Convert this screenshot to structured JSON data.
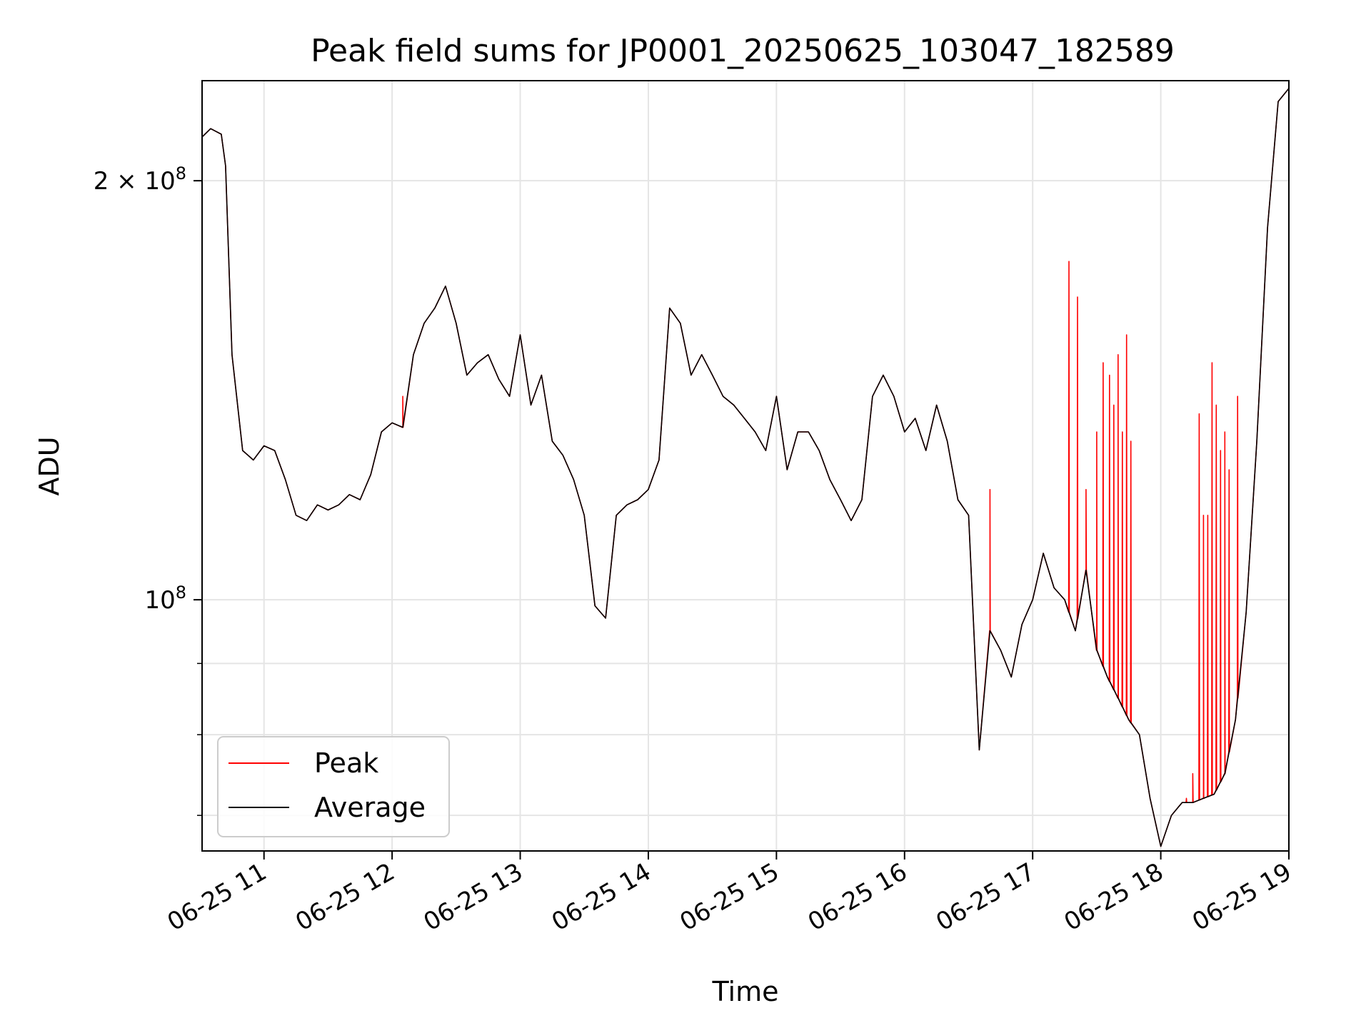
{
  "chart_data": {
    "type": "line",
    "title": "Peak field sums for JP0001_20250625_103047_182589",
    "xlabel": "Time",
    "ylabel": "ADU",
    "yscale": "log",
    "grid": true,
    "legend_position": "lower-left",
    "xlim": [
      "06-25 10:31",
      "06-25 19:00"
    ],
    "ylim": [
      66000000,
      236000000
    ],
    "xticks": [
      "06-25 11",
      "06-25 12",
      "06-25 13",
      "06-25 14",
      "06-25 15",
      "06-25 16",
      "06-25 17",
      "06-25 18",
      "06-25 19"
    ],
    "yticks": [
      {
        "value": 100000000,
        "base": "10",
        "exp": "8",
        "mantissa": ""
      },
      {
        "value": 200000000,
        "base": "10",
        "exp": "8",
        "mantissa": "2"
      }
    ],
    "x": [
      "10:31",
      "10:35",
      "10:40",
      "10:42",
      "10:45",
      "10:50",
      "10:55",
      "11:00",
      "11:05",
      "11:10",
      "11:15",
      "11:20",
      "11:25",
      "11:30",
      "11:35",
      "11:40",
      "11:45",
      "11:50",
      "11:55",
      "12:00",
      "12:05",
      "12:10",
      "12:15",
      "12:20",
      "12:25",
      "12:30",
      "12:35",
      "12:40",
      "12:45",
      "12:50",
      "12:55",
      "13:00",
      "13:05",
      "13:10",
      "13:15",
      "13:20",
      "13:25",
      "13:30",
      "13:35",
      "13:40",
      "13:45",
      "13:50",
      "13:55",
      "14:00",
      "14:05",
      "14:10",
      "14:15",
      "14:20",
      "14:25",
      "14:30",
      "14:35",
      "14:40",
      "14:45",
      "14:50",
      "14:55",
      "15:00",
      "15:05",
      "15:10",
      "15:15",
      "15:20",
      "15:25",
      "15:30",
      "15:35",
      "15:40",
      "15:45",
      "15:50",
      "15:55",
      "16:00",
      "16:05",
      "16:10",
      "16:15",
      "16:20",
      "16:25",
      "16:30",
      "16:35",
      "16:40",
      "16:45",
      "16:50",
      "16:55",
      "17:00",
      "17:05",
      "17:10",
      "17:15",
      "17:20",
      "17:25",
      "17:30",
      "17:35",
      "17:40",
      "17:45",
      "17:50",
      "17:55",
      "18:00",
      "18:05",
      "18:10",
      "18:15",
      "18:20",
      "18:25",
      "18:30",
      "18:35",
      "18:40",
      "18:45",
      "18:50",
      "18:55",
      "19:00"
    ],
    "series": [
      {
        "name": "Peak",
        "color": "#ff0000",
        "values": [
          215000000,
          218000000,
          216000000,
          205000000,
          150000000,
          128000000,
          126000000,
          129000000,
          128000000,
          122000000,
          115000000,
          114000000,
          117000000,
          116000000,
          117000000,
          119000000,
          118000000,
          123000000,
          132000000,
          134000000,
          133000000,
          150000000,
          158000000,
          162000000,
          168000000,
          158000000,
          145000000,
          148000000,
          150000000,
          144000000,
          140000000,
          155000000,
          138000000,
          145000000,
          130000000,
          127000000,
          122000000,
          115000000,
          99000000,
          97000000,
          115000000,
          117000000,
          118000000,
          120000000,
          126000000,
          162000000,
          158000000,
          145000000,
          150000000,
          145000000,
          140000000,
          138000000,
          135000000,
          132000000,
          128000000,
          140000000,
          124000000,
          132000000,
          132000000,
          128000000,
          122000000,
          118000000,
          114000000,
          118000000,
          140000000,
          145000000,
          140000000,
          132000000,
          135000000,
          128000000,
          138000000,
          130000000,
          118000000,
          115000000,
          78000000,
          95000000,
          92000000,
          88000000,
          96000000,
          100000000,
          108000000,
          102000000,
          100000000,
          95000000,
          105000000,
          92000000,
          88000000,
          85000000,
          82000000,
          80000000,
          72000000,
          66500000,
          70000000,
          71500000,
          71500000,
          72000000,
          72500000,
          75000000,
          82000000,
          98000000,
          130000000,
          185000000,
          228000000,
          233000000
        ],
        "spikes": [
          {
            "x": "12:05",
            "value": 140000000
          },
          {
            "x": "16:40",
            "value": 120000000
          },
          {
            "x": "17:17",
            "value": 175000000
          },
          {
            "x": "17:21",
            "value": 165000000
          },
          {
            "x": "17:25",
            "value": 120000000
          },
          {
            "x": "17:30",
            "value": 132000000
          },
          {
            "x": "17:33",
            "value": 148000000
          },
          {
            "x": "17:36",
            "value": 145000000
          },
          {
            "x": "17:38",
            "value": 138000000
          },
          {
            "x": "17:40",
            "value": 150000000
          },
          {
            "x": "17:42",
            "value": 132000000
          },
          {
            "x": "17:44",
            "value": 155000000
          },
          {
            "x": "17:46",
            "value": 130000000
          },
          {
            "x": "18:12",
            "value": 72000000
          },
          {
            "x": "18:15",
            "value": 75000000
          },
          {
            "x": "18:18",
            "value": 136000000
          },
          {
            "x": "18:20",
            "value": 115000000
          },
          {
            "x": "18:22",
            "value": 115000000
          },
          {
            "x": "18:24",
            "value": 148000000
          },
          {
            "x": "18:26",
            "value": 138000000
          },
          {
            "x": "18:28",
            "value": 128000000
          },
          {
            "x": "18:30",
            "value": 132000000
          },
          {
            "x": "18:32",
            "value": 124000000
          },
          {
            "x": "18:36",
            "value": 140000000
          }
        ]
      },
      {
        "name": "Average",
        "color": "#000000",
        "values": [
          215000000,
          218000000,
          216000000,
          205000000,
          150000000,
          128000000,
          126000000,
          129000000,
          128000000,
          122000000,
          115000000,
          114000000,
          117000000,
          116000000,
          117000000,
          119000000,
          118000000,
          123000000,
          132000000,
          134000000,
          133000000,
          150000000,
          158000000,
          162000000,
          168000000,
          158000000,
          145000000,
          148000000,
          150000000,
          144000000,
          140000000,
          155000000,
          138000000,
          145000000,
          130000000,
          127000000,
          122000000,
          115000000,
          99000000,
          97000000,
          115000000,
          117000000,
          118000000,
          120000000,
          126000000,
          162000000,
          158000000,
          145000000,
          150000000,
          145000000,
          140000000,
          138000000,
          135000000,
          132000000,
          128000000,
          140000000,
          124000000,
          132000000,
          132000000,
          128000000,
          122000000,
          118000000,
          114000000,
          118000000,
          140000000,
          145000000,
          140000000,
          132000000,
          135000000,
          128000000,
          138000000,
          130000000,
          118000000,
          115000000,
          78000000,
          95000000,
          92000000,
          88000000,
          96000000,
          100000000,
          108000000,
          102000000,
          100000000,
          95000000,
          105000000,
          92000000,
          88000000,
          85000000,
          82000000,
          80000000,
          72000000,
          66500000,
          70000000,
          71500000,
          71500000,
          72000000,
          72500000,
          75000000,
          82000000,
          98000000,
          130000000,
          185000000,
          228000000,
          233000000
        ]
      }
    ]
  }
}
